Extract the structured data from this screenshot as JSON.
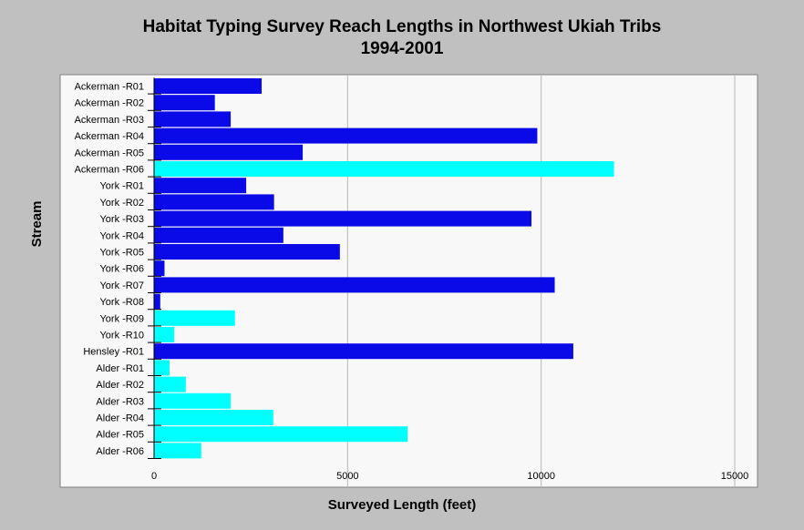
{
  "chart_data": {
    "type": "bar",
    "orientation": "horizontal",
    "title": "Habitat Typing Survey Reach Lengths in Northwest Ukiah Tribs",
    "subtitle": "1994-2001",
    "xlabel": "Surveyed Length (feet)",
    "ylabel": "Stream",
    "xlim": [
      0,
      15000
    ],
    "xticks": [
      0,
      5000,
      10000,
      15000
    ],
    "grid": "vertical",
    "legend": "none",
    "colors": {
      "dark": "#0a0ae8",
      "light": "#00ffff",
      "plot_bg": "#f8f8f8",
      "page_bg": "#c0c0c0"
    },
    "categories": [
      "Ackerman -R01",
      "Ackerman -R02",
      "Ackerman -R03",
      "Ackerman -R04",
      "Ackerman -R05",
      "Ackerman -R06",
      "York -R01",
      "York -R02",
      "York -R03",
      "York -R04",
      "York -R05",
      "York -R06",
      "York -R07",
      "York -R08",
      "York -R09",
      "York -R10",
      "Hensley -R01",
      "Alder -R01",
      "Alder -R02",
      "Alder -R03",
      "Alder -R04",
      "Alder -R05",
      "Alder -R06"
    ],
    "values": [
      2780,
      1570,
      1980,
      9900,
      3840,
      11880,
      2380,
      3100,
      9750,
      3340,
      4800,
      270,
      10350,
      160,
      2090,
      520,
      10830,
      400,
      820,
      1980,
      3080,
      6550,
      1220
    ],
    "bar_colors": [
      "dark",
      "dark",
      "dark",
      "dark",
      "dark",
      "light",
      "dark",
      "dark",
      "dark",
      "dark",
      "dark",
      "dark",
      "dark",
      "dark",
      "light",
      "light",
      "dark",
      "light",
      "light",
      "light",
      "light",
      "light",
      "light"
    ]
  }
}
